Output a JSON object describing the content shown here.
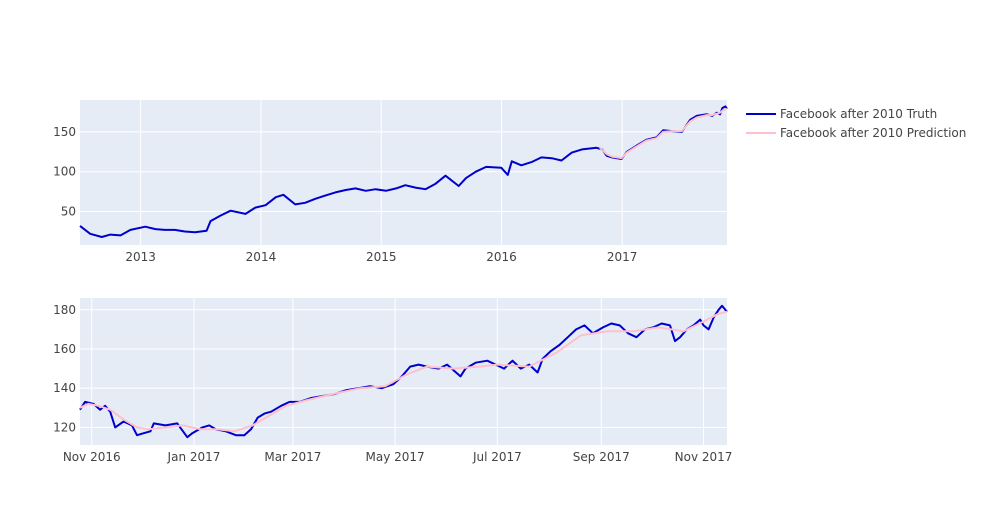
{
  "colors": {
    "truth": "#0000cc",
    "prediction": "#ffc0cb",
    "plot_bg": "#e5ecf6",
    "grid": "#ffffff",
    "tick_text": "#444444"
  },
  "chart_data": [
    {
      "type": "line",
      "title": "",
      "xlabel": "",
      "ylabel": "",
      "xlim": [
        "2012-07-01",
        "2017-11-15"
      ],
      "ylim": [
        8,
        190
      ],
      "xticks": [
        {
          "label": "2013",
          "date": "2013-01-01"
        },
        {
          "label": "2014",
          "date": "2014-01-01"
        },
        {
          "label": "2015",
          "date": "2015-01-01"
        },
        {
          "label": "2016",
          "date": "2016-01-01"
        },
        {
          "label": "2017",
          "date": "2017-01-01"
        }
      ],
      "yticks": [
        {
          "label": "50",
          "value": 50
        },
        {
          "label": "100",
          "value": 100
        },
        {
          "label": "150",
          "value": 150
        }
      ],
      "grid": true,
      "legend": "right",
      "series": [
        {
          "name": "Facebook after 2010 Truth",
          "color": "#0000cc",
          "points": [
            [
              "2012-07-01",
              32
            ],
            [
              "2012-08-01",
              22
            ],
            [
              "2012-09-05",
              18
            ],
            [
              "2012-10-01",
              21
            ],
            [
              "2012-11-01",
              20
            ],
            [
              "2012-12-01",
              27
            ],
            [
              "2013-01-15",
              31
            ],
            [
              "2013-02-15",
              28
            ],
            [
              "2013-03-15",
              27
            ],
            [
              "2013-04-15",
              27
            ],
            [
              "2013-05-15",
              25
            ],
            [
              "2013-06-15",
              24
            ],
            [
              "2013-07-20",
              26
            ],
            [
              "2013-08-01",
              38
            ],
            [
              "2013-09-01",
              45
            ],
            [
              "2013-10-01",
              51
            ],
            [
              "2013-11-15",
              47
            ],
            [
              "2013-12-15",
              55
            ],
            [
              "2014-01-15",
              58
            ],
            [
              "2014-02-15",
              68
            ],
            [
              "2014-03-10",
              71
            ],
            [
              "2014-04-15",
              59
            ],
            [
              "2014-05-15",
              61
            ],
            [
              "2014-06-15",
              66
            ],
            [
              "2014-07-15",
              70
            ],
            [
              "2014-08-15",
              74
            ],
            [
              "2014-09-15",
              77
            ],
            [
              "2014-10-15",
              79
            ],
            [
              "2014-11-15",
              76
            ],
            [
              "2014-12-15",
              78
            ],
            [
              "2015-01-15",
              76
            ],
            [
              "2015-02-15",
              79
            ],
            [
              "2015-03-15",
              83
            ],
            [
              "2015-04-15",
              80
            ],
            [
              "2015-05-15",
              78
            ],
            [
              "2015-06-15",
              85
            ],
            [
              "2015-07-15",
              95
            ],
            [
              "2015-08-24",
              82
            ],
            [
              "2015-09-15",
              92
            ],
            [
              "2015-10-15",
              100
            ],
            [
              "2015-11-15",
              106
            ],
            [
              "2015-12-31",
              105
            ],
            [
              "2016-01-20",
              96
            ],
            [
              "2016-02-01",
              113
            ],
            [
              "2016-03-01",
              108
            ],
            [
              "2016-04-01",
              112
            ],
            [
              "2016-05-01",
              118
            ],
            [
              "2016-06-01",
              117
            ],
            [
              "2016-07-01",
              114
            ],
            [
              "2016-08-01",
              124
            ],
            [
              "2016-09-01",
              128
            ],
            [
              "2016-10-15",
              130
            ],
            [
              "2016-11-01",
              128
            ],
            [
              "2016-11-15",
              120
            ],
            [
              "2016-12-01",
              118
            ],
            [
              "2016-12-30",
              116
            ],
            [
              "2017-01-15",
              125
            ],
            [
              "2017-02-15",
              133
            ],
            [
              "2017-03-15",
              140
            ],
            [
              "2017-04-15",
              143
            ],
            [
              "2017-05-05",
              152
            ],
            [
              "2017-06-01",
              151
            ],
            [
              "2017-07-01",
              150
            ],
            [
              "2017-07-26",
              165
            ],
            [
              "2017-08-15",
              170
            ],
            [
              "2017-09-15",
              172
            ],
            [
              "2017-10-01",
              170
            ],
            [
              "2017-10-15",
              174
            ],
            [
              "2017-10-25",
              172
            ],
            [
              "2017-11-01",
              180
            ],
            [
              "2017-11-10",
              182
            ],
            [
              "2017-11-15",
              179
            ]
          ]
        },
        {
          "name": "Facebook after 2010 Prediction",
          "color": "#ffc0cb",
          "points": [
            [
              "2016-10-25",
              130
            ],
            [
              "2016-11-15",
              122
            ],
            [
              "2016-12-01",
              119
            ],
            [
              "2016-12-30",
              117
            ],
            [
              "2017-01-15",
              124
            ],
            [
              "2017-02-15",
              132
            ],
            [
              "2017-03-15",
              139
            ],
            [
              "2017-04-15",
              142
            ],
            [
              "2017-05-05",
              150
            ],
            [
              "2017-06-01",
              151
            ],
            [
              "2017-07-01",
              151
            ],
            [
              "2017-07-26",
              163
            ],
            [
              "2017-08-15",
              168
            ],
            [
              "2017-09-15",
              171
            ],
            [
              "2017-10-01",
              171
            ],
            [
              "2017-10-25",
              174
            ],
            [
              "2017-11-05",
              178
            ],
            [
              "2017-11-15",
              179
            ]
          ]
        }
      ]
    },
    {
      "type": "line",
      "title": "",
      "xlabel": "",
      "ylabel": "",
      "xlim": [
        "2016-10-25",
        "2017-11-15"
      ],
      "ylim": [
        111,
        186
      ],
      "xticks": [
        {
          "label": "Nov 2016",
          "date": "2016-11-01"
        },
        {
          "label": "Jan 2017",
          "date": "2017-01-01"
        },
        {
          "label": "Mar 2017",
          "date": "2017-03-01"
        },
        {
          "label": "May 2017",
          "date": "2017-05-01"
        },
        {
          "label": "Jul 2017",
          "date": "2017-07-01"
        },
        {
          "label": "Sep 2017",
          "date": "2017-09-01"
        },
        {
          "label": "Nov 2017",
          "date": "2017-11-01"
        }
      ],
      "yticks": [
        {
          "label": "120",
          "value": 120
        },
        {
          "label": "140",
          "value": 140
        },
        {
          "label": "160",
          "value": 160
        },
        {
          "label": "180",
          "value": 180
        }
      ],
      "grid": true,
      "series": [
        {
          "name": "Facebook after 2010 Truth",
          "color": "#0000cc",
          "points": [
            [
              "2016-10-25",
              129
            ],
            [
              "2016-10-28",
              133
            ],
            [
              "2016-11-02",
              132
            ],
            [
              "2016-11-06",
              129
            ],
            [
              "2016-11-09",
              131
            ],
            [
              "2016-11-12",
              128
            ],
            [
              "2016-11-15",
              120
            ],
            [
              "2016-11-20",
              123
            ],
            [
              "2016-11-25",
              121
            ],
            [
              "2016-11-28",
              116
            ],
            [
              "2016-12-02",
              117
            ],
            [
              "2016-12-06",
              118
            ],
            [
              "2016-12-08",
              122
            ],
            [
              "2016-12-15",
              121
            ],
            [
              "2016-12-22",
              122
            ],
            [
              "2016-12-28",
              115
            ],
            [
              "2016-12-31",
              117
            ],
            [
              "2017-01-06",
              120
            ],
            [
              "2017-01-10",
              121
            ],
            [
              "2017-01-14",
              119
            ],
            [
              "2017-01-20",
              118
            ],
            [
              "2017-01-26",
              116
            ],
            [
              "2017-01-31",
              116
            ],
            [
              "2017-02-04",
              119
            ],
            [
              "2017-02-08",
              125
            ],
            [
              "2017-02-12",
              127
            ],
            [
              "2017-02-16",
              128
            ],
            [
              "2017-02-22",
              131
            ],
            [
              "2017-02-27",
              133
            ],
            [
              "2017-03-05",
              133
            ],
            [
              "2017-03-12",
              135
            ],
            [
              "2017-03-19",
              136
            ],
            [
              "2017-03-26",
              137
            ],
            [
              "2017-04-02",
              139
            ],
            [
              "2017-04-09",
              140
            ],
            [
              "2017-04-16",
              141
            ],
            [
              "2017-04-23",
              140
            ],
            [
              "2017-04-30",
              142
            ],
            [
              "2017-05-05",
              146
            ],
            [
              "2017-05-10",
              151
            ],
            [
              "2017-05-15",
              152
            ],
            [
              "2017-05-20",
              151
            ],
            [
              "2017-05-27",
              150
            ],
            [
              "2017-06-01",
              152
            ],
            [
              "2017-06-09",
              146
            ],
            [
              "2017-06-12",
              150
            ],
            [
              "2017-06-18",
              153
            ],
            [
              "2017-06-25",
              154
            ],
            [
              "2017-06-30",
              152
            ],
            [
              "2017-07-05",
              150
            ],
            [
              "2017-07-10",
              154
            ],
            [
              "2017-07-15",
              150
            ],
            [
              "2017-07-20",
              152
            ],
            [
              "2017-07-25",
              148
            ],
            [
              "2017-07-28",
              155
            ],
            [
              "2017-08-02",
              159
            ],
            [
              "2017-08-07",
              162
            ],
            [
              "2017-08-12",
              166
            ],
            [
              "2017-08-17",
              170
            ],
            [
              "2017-08-22",
              172
            ],
            [
              "2017-08-27",
              168
            ],
            [
              "2017-09-02",
              171
            ],
            [
              "2017-09-07",
              173
            ],
            [
              "2017-09-12",
              172
            ],
            [
              "2017-09-17",
              168
            ],
            [
              "2017-09-22",
              166
            ],
            [
              "2017-09-27",
              170
            ],
            [
              "2017-10-02",
              171
            ],
            [
              "2017-10-07",
              173
            ],
            [
              "2017-10-12",
              172
            ],
            [
              "2017-10-15",
              164
            ],
            [
              "2017-10-18",
              166
            ],
            [
              "2017-10-22",
              170
            ],
            [
              "2017-10-26",
              172
            ],
            [
              "2017-10-30",
              175
            ],
            [
              "2017-11-01",
              172
            ],
            [
              "2017-11-04",
              170
            ],
            [
              "2017-11-07",
              176
            ],
            [
              "2017-11-10",
              180
            ],
            [
              "2017-11-12",
              182
            ],
            [
              "2017-11-14",
              180
            ],
            [
              "2017-11-15",
              179
            ]
          ]
        },
        {
          "name": "Facebook after 2010 Prediction",
          "color": "#ffc0cb",
          "points": [
            [
              "2016-10-25",
              130
            ],
            [
              "2016-10-30",
              132
            ],
            [
              "2016-11-05",
              131
            ],
            [
              "2016-11-12",
              129
            ],
            [
              "2016-11-20",
              124
            ],
            [
              "2016-11-28",
              120
            ],
            [
              "2016-12-05",
              119
            ],
            [
              "2016-12-15",
              120
            ],
            [
              "2016-12-25",
              121
            ],
            [
              "2017-01-05",
              119
            ],
            [
              "2017-01-15",
              119
            ],
            [
              "2017-01-25",
              118
            ],
            [
              "2017-02-05",
              121
            ],
            [
              "2017-02-15",
              126
            ],
            [
              "2017-02-25",
              131
            ],
            [
              "2017-03-10",
              134
            ],
            [
              "2017-03-25",
              137
            ],
            [
              "2017-04-10",
              140
            ],
            [
              "2017-04-25",
              141
            ],
            [
              "2017-05-08",
              147
            ],
            [
              "2017-05-20",
              151
            ],
            [
              "2017-06-05",
              150
            ],
            [
              "2017-06-20",
              151
            ],
            [
              "2017-07-01",
              152
            ],
            [
              "2017-07-20",
              151
            ],
            [
              "2017-08-05",
              158
            ],
            [
              "2017-08-20",
              167
            ],
            [
              "2017-09-05",
              169
            ],
            [
              "2017-09-20",
              169
            ],
            [
              "2017-10-05",
              171
            ],
            [
              "2017-10-20",
              169
            ],
            [
              "2017-11-01",
              174
            ],
            [
              "2017-11-10",
              178
            ],
            [
              "2017-11-15",
              179
            ]
          ]
        }
      ]
    }
  ]
}
